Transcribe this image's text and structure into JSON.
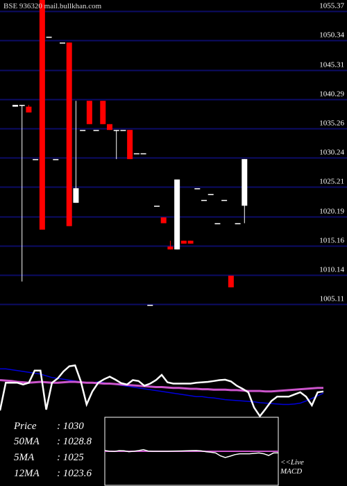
{
  "header": {
    "source": "BSE 936320 mail.bullkhan.com"
  },
  "info": [
    {
      "label": "Price",
      "value": ": 1030"
    },
    {
      "label": "50MA",
      "value": ": 1028.8"
    },
    {
      "label": "5MA",
      "value": ": 1025"
    },
    {
      "label": "12MA",
      "value": ": 1023.6"
    }
  ],
  "legend": {
    "live": "<<Live",
    "macd": "MACD"
  },
  "colors": {
    "up": "#ffffff",
    "down": "#ff0000",
    "grid": "#0c0c66",
    "ma50": "#cc55cc",
    "ma12": "#0000dd"
  },
  "chart_data": {
    "type": "candlestick",
    "ylabels": [
      1055.37,
      1050.34,
      1045.31,
      1040.29,
      1035.26,
      1030.24,
      1025.21,
      1020.19,
      1015.16,
      1010.14,
      1005.11
    ],
    "ylim": [
      1002.5,
      1057.3
    ],
    "candles": [
      {
        "o": 1039.0,
        "h": 1039.3,
        "l": 1039.0,
        "c": 1039.3
      },
      {
        "o": 1039.3,
        "h": 1039.3,
        "l": 1009.0,
        "c": 1039.3
      },
      {
        "o": 1039.0,
        "h": 1039.3,
        "l": 1038.0,
        "c": 1038.0
      },
      {
        "o": 1030.0,
        "h": 1030.0,
        "l": 1030.0,
        "c": 1030.0
      },
      {
        "o": 1080.0,
        "h": 1080.0,
        "l": 1040.0,
        "c": 1040.0
      },
      {
        "o": 1051.0,
        "h": 1051.0,
        "l": 1051.0,
        "c": 1051.0
      },
      {
        "o": 1030.0,
        "h": 1030.0,
        "l": 1030.0,
        "c": 1030.0
      },
      {
        "o": 1050.0,
        "h": 1050.0,
        "l": 1050.0,
        "c": 1050.0
      },
      {
        "o": 1050.0,
        "h": 1050.0,
        "l": 1018.5,
        "c": 1018.5
      },
      {
        "o": 1022.5,
        "h": 1040.0,
        "l": 1022.5,
        "c": 1025.0
      },
      {
        "o": 1035.0,
        "h": 1035.0,
        "l": 1035.0,
        "c": 1035.0
      },
      {
        "o": 1040.0,
        "h": 1040.0,
        "l": 1036.0,
        "c": 1036.0
      },
      {
        "o": 1035.0,
        "h": 1035.0,
        "l": 1035.0,
        "c": 1035.0
      },
      {
        "o": 1040.0,
        "h": 1040.0,
        "l": 1036.0,
        "c": 1036.0
      },
      {
        "o": 1036.0,
        "h": 1036.0,
        "l": 1035.0,
        "c": 1035.0
      },
      {
        "o": 1035.0,
        "h": 1035.0,
        "l": 1030.0,
        "c": 1035.0
      },
      {
        "o": 1035.0,
        "h": 1035.0,
        "l": 1035.0,
        "c": 1035.0
      },
      {
        "o": 1035.0,
        "h": 1035.0,
        "l": 1030.0,
        "c": 1030.0
      },
      {
        "o": 1031.0,
        "h": 1031.0,
        "l": 1031.0,
        "c": 1031.0
      },
      {
        "o": 1031.0,
        "h": 1031.0,
        "l": 1031.0,
        "c": 1031.0
      },
      {
        "o": 1005.0,
        "h": 1005.0,
        "l": 1005.0,
        "c": 1005.0
      },
      {
        "o": 1022.0,
        "h": 1022.0,
        "l": 1022.0,
        "c": 1022.0
      },
      {
        "o": 1020.0,
        "h": 1020.0,
        "l": 1019.0,
        "c": 1019.0
      },
      {
        "o": 1015.0,
        "h": 1016.0,
        "l": 1014.5,
        "c": 1014.5
      },
      {
        "o": 1014.5,
        "h": 1026.5,
        "l": 1014.5,
        "c": 1026.5
      },
      {
        "o": 1016.0,
        "h": 1016.0,
        "l": 1015.5,
        "c": 1015.5
      },
      {
        "o": 1016.0,
        "h": 1016.0,
        "l": 1015.5,
        "c": 1015.5
      },
      {
        "o": 1025.0,
        "h": 1025.0,
        "l": 1025.0,
        "c": 1025.0
      },
      {
        "o": 1023.0,
        "h": 1023.0,
        "l": 1023.0,
        "c": 1023.0
      },
      {
        "o": 1024.0,
        "h": 1024.0,
        "l": 1024.0,
        "c": 1024.0
      },
      {
        "o": 1019.0,
        "h": 1019.0,
        "l": 1019.0,
        "c": 1019.0
      },
      {
        "o": 1023.0,
        "h": 1023.0,
        "l": 1023.0,
        "c": 1023.0
      },
      {
        "o": 1010.0,
        "h": 1010.0,
        "l": 1008.0,
        "c": 1008.0
      },
      {
        "o": 1019.0,
        "h": 1019.0,
        "l": 1019.0,
        "c": 1019.0
      },
      {
        "o": 1022.0,
        "h": 1030.0,
        "l": 1019.0,
        "c": 1030.0
      }
    ],
    "macd": {
      "ylim": [
        -1,
        1
      ],
      "x": [
        0,
        1,
        2,
        3,
        4,
        5,
        6,
        7,
        8,
        9,
        10,
        11,
        12,
        13,
        14,
        15,
        16,
        17,
        18,
        19,
        20,
        21,
        22,
        23,
        24,
        25,
        26,
        27,
        28,
        29,
        30,
        31,
        32,
        33,
        34,
        35,
        36,
        37,
        38,
        39,
        40,
        41,
        42,
        43,
        44,
        45,
        46,
        47,
        48,
        49,
        50,
        51,
        52,
        53,
        54,
        55,
        56
      ],
      "macd": [
        -0.62,
        0.02,
        0.02,
        0.02,
        -0.02,
        0.02,
        0.3,
        0.3,
        -0.6,
        0.02,
        0.12,
        0.28,
        0.4,
        0.42,
        0.05,
        -0.48,
        -0.18,
        0.02,
        0.1,
        0.16,
        0.09,
        0.01,
        -0.02,
        0.08,
        0.06,
        -0.05,
        0.0,
        0.08,
        0.2,
        0.03,
        0.0,
        0.0,
        0.0,
        0.0,
        0.02,
        0.03,
        0.04,
        0.06,
        0.08,
        0.09,
        0.05,
        -0.05,
        -0.12,
        -0.2,
        -0.55,
        -0.75,
        -0.58,
        -0.4,
        -0.3,
        -0.3,
        -0.3,
        -0.25,
        -0.2,
        -0.3,
        -0.5,
        -0.2,
        -0.18
      ],
      "signal": [
        0.34,
        0.34,
        0.32,
        0.3,
        0.28,
        0.26,
        0.24,
        0.22,
        0.18,
        0.14,
        0.12,
        0.1,
        0.08,
        0.06,
        0.04,
        0.02,
        0.02,
        0.04,
        0.02,
        0.0,
        -0.02,
        -0.04,
        -0.06,
        -0.08,
        -0.1,
        -0.12,
        -0.14,
        -0.16,
        -0.18,
        -0.2,
        -0.22,
        -0.24,
        -0.26,
        -0.28,
        -0.3,
        -0.3,
        -0.32,
        -0.33,
        -0.35,
        -0.37,
        -0.38,
        -0.39,
        -0.4,
        -0.41,
        -0.42,
        -0.44,
        -0.45,
        -0.46,
        -0.47,
        -0.48,
        -0.48,
        -0.47,
        -0.45,
        -0.4,
        -0.34,
        -0.28,
        -0.22
      ],
      "hist_line": [
        0.08,
        0.07,
        0.06,
        0.04,
        0.03,
        0.02,
        0.03,
        0.04,
        0.03,
        0.02,
        0.02,
        0.03,
        0.04,
        0.04,
        0.03,
        0.02,
        0.02,
        0.01,
        0.0,
        0.0,
        -0.01,
        -0.02,
        -0.03,
        -0.04,
        -0.05,
        -0.06,
        -0.07,
        -0.08,
        -0.08,
        -0.09,
        -0.1,
        -0.1,
        -0.11,
        -0.12,
        -0.12,
        -0.13,
        -0.13,
        -0.14,
        -0.14,
        -0.14,
        -0.15,
        -0.15,
        -0.16,
        -0.17,
        -0.17,
        -0.17,
        -0.18,
        -0.18,
        -0.17,
        -0.16,
        -0.15,
        -0.14,
        -0.13,
        -0.12,
        -0.11,
        -0.1,
        -0.1
      ]
    }
  }
}
